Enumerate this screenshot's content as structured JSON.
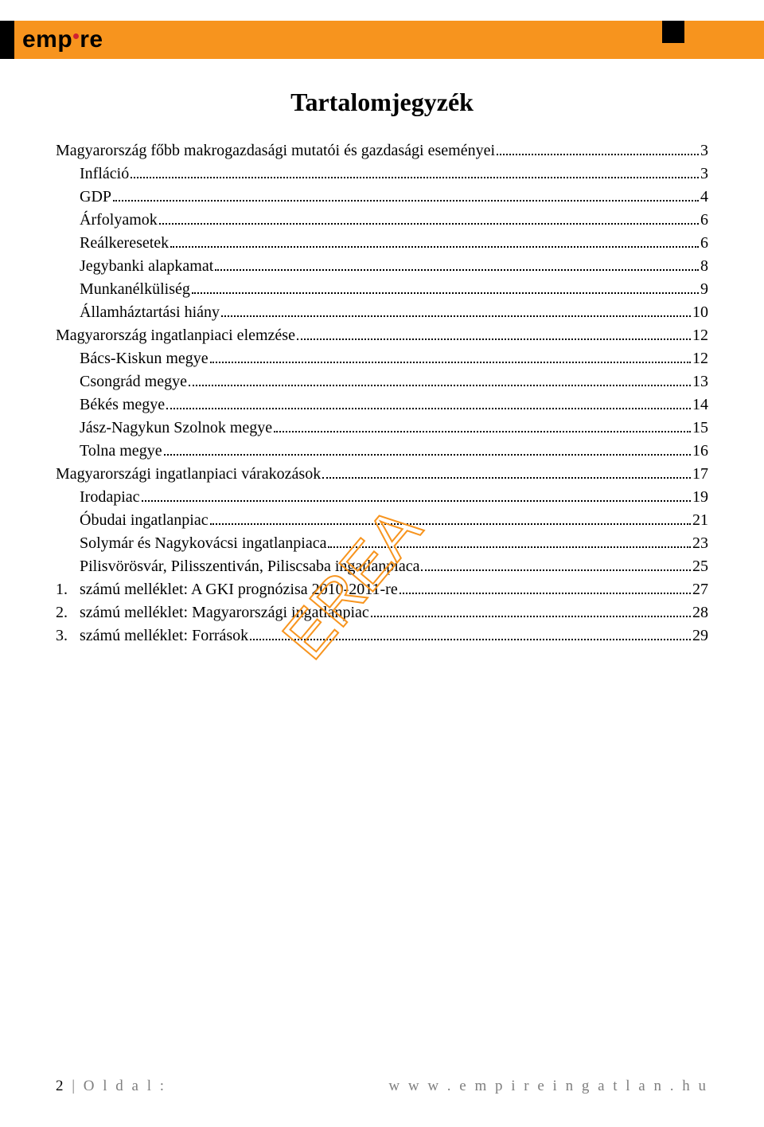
{
  "colors": {
    "header_orange": "#f7941e",
    "header_black": "#000000",
    "logo_dot": "#d02030",
    "text": "#000000",
    "footer_gray": "#7f7f7f",
    "watermark_stroke": "#f7941e",
    "background": "#ffffff"
  },
  "logo": {
    "text_before_dot": "emp",
    "text_after_dot": "re"
  },
  "title": "Tartalomjegyzék",
  "toc": [
    {
      "label": "Magyarország főbb makrogazdasági mutatói és gazdasági eseményei",
      "page": "3",
      "indent": false
    },
    {
      "label": "Infláció",
      "page": "3",
      "indent": true
    },
    {
      "label": "GDP",
      "page": "4",
      "indent": true
    },
    {
      "label": "Árfolyamok",
      "page": "6",
      "indent": true
    },
    {
      "label": "Reálkeresetek",
      "page": "6",
      "indent": true
    },
    {
      "label": "Jegybanki alapkamat",
      "page": "8",
      "indent": true
    },
    {
      "label": "Munkanélküliség",
      "page": "9",
      "indent": true
    },
    {
      "label": "Államháztartási hiány",
      "page": "10",
      "indent": true
    },
    {
      "label": "Magyarország ingatlanpiaci elemzése",
      "page": "12",
      "indent": false
    },
    {
      "label": "Bács-Kiskun megye",
      "page": "12",
      "indent": true
    },
    {
      "label": "Csongrád megye",
      "page": "13",
      "indent": true
    },
    {
      "label": "Békés megye",
      "page": "14",
      "indent": true
    },
    {
      "label": "Jász-Nagykun Szolnok megye",
      "page": "15",
      "indent": true
    },
    {
      "label": "Tolna megye",
      "page": "16",
      "indent": true
    },
    {
      "label": "Magyarországi ingatlanpiaci várakozások",
      "page": "17",
      "indent": false
    },
    {
      "label": "Irodapiac",
      "page": "19",
      "indent": true
    },
    {
      "label": "Óbudai ingatlanpiac",
      "page": "21",
      "indent": true
    },
    {
      "label": "Solymár és Nagykovácsi ingatlanpiaca",
      "page": "23",
      "indent": true
    },
    {
      "label": "Pilisvörösvár, Pilisszentiván, Piliscsaba ingatlanpiaca",
      "page": "25",
      "indent": true
    }
  ],
  "numbered": [
    {
      "num": "1.",
      "label": "számú melléklet: A GKI prognózisa 2010-2011-re",
      "page": "27"
    },
    {
      "num": "2.",
      "label": "számú melléklet: Magyarországi ingatlanpiac",
      "page": "28"
    },
    {
      "num": "3.",
      "label": "számú melléklet: Források",
      "page": "29"
    }
  ],
  "footer": {
    "page_number": "2",
    "page_label_rest": " | O l d a l :",
    "url": "w w w . e m p i r e i n g a t l a n . h u"
  },
  "watermark": {
    "text": "EREA"
  }
}
